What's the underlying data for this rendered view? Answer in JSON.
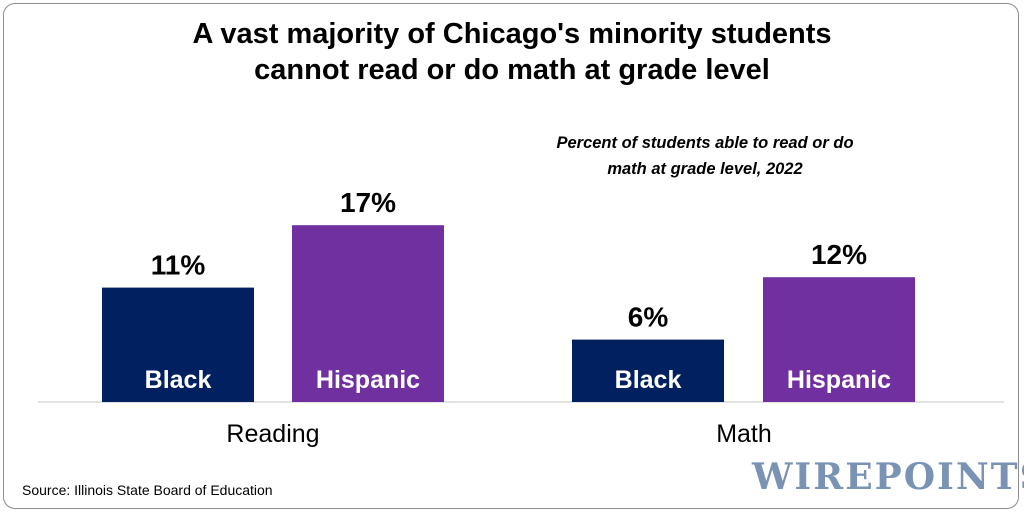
{
  "title_line1": "A vast majority of Chicago's minority students",
  "title_line2": "cannot read or do math at grade level",
  "subtitle_line1": "Percent of students able to read or do",
  "subtitle_line2": "math at grade level, 2022",
  "source": "Source: Illinois State Board of Education",
  "logo": "WIREPOINTS",
  "chart_data": {
    "type": "bar",
    "categories": [
      "Reading",
      "Math"
    ],
    "series": [
      {
        "name": "Black",
        "color": "#002060",
        "values": [
          11,
          6
        ],
        "labels": [
          "11%",
          "6%"
        ]
      },
      {
        "name": "Hispanic",
        "color": "#7030a0",
        "values": [
          17,
          12
        ],
        "labels": [
          "17%",
          "12%"
        ]
      }
    ],
    "title": "A vast majority of Chicago's minority students cannot read or do math at grade level",
    "subtitle": "Percent of students able to read or do math at grade level, 2022",
    "ylim": [
      0,
      20
    ],
    "grid": false,
    "legend": "none (series names shown inside bars)"
  }
}
